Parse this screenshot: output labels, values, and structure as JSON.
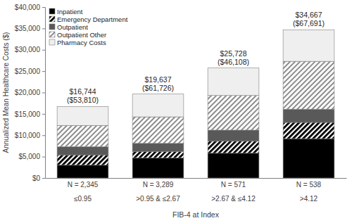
{
  "chart_data": {
    "type": "bar",
    "stacked": true,
    "x_label": "FIB-4 at Index",
    "y_label": "Annualized Mean Healthcare Costs ($)",
    "categories": [
      "≤0.95",
      ">0.95 & ≤2.67",
      ">2.67 & ≤4.12",
      ">4.12"
    ],
    "n_labels": [
      "N = 2,345",
      "N = 3,289",
      "N = 571",
      "N = 538"
    ],
    "series": [
      {
        "name": "Inpatient",
        "color": "#000000",
        "values": [
          3000,
          4700,
          5800,
          9200
        ]
      },
      {
        "name": "Emergency Department",
        "color": "#000000",
        "values": [
          2400,
          1500,
          2800,
          3800
        ]
      },
      {
        "name": "Outpatient",
        "color": "#595959",
        "values": [
          1900,
          1900,
          2600,
          3100
        ]
      },
      {
        "name": "Outpatient Other",
        "color": "#8c8c8c",
        "values": [
          5000,
          6200,
          8100,
          11200
        ]
      },
      {
        "name": "Pharmacy Costs",
        "color": "#efefef",
        "values": [
          4444,
          5337,
          6428,
          7367
        ]
      }
    ],
    "totals": [
      16744,
      19637,
      25728,
      34667
    ],
    "total_labels": [
      "$16,744",
      "$19,637",
      "$25,728",
      "$34,667"
    ],
    "sd_labels": [
      "($53,810)",
      "($61,726)",
      "($46,108)",
      "($67,691)"
    ],
    "ylim": [
      0,
      40000
    ],
    "yticks": [
      {
        "value": 0,
        "label": "$0"
      },
      {
        "value": 5000,
        "label": "$5,000"
      },
      {
        "value": 10000,
        "label": "$10,000"
      },
      {
        "value": 15000,
        "label": "$15,000"
      },
      {
        "value": 20000,
        "label": "$20,000"
      },
      {
        "value": 25000,
        "label": "$25,000"
      },
      {
        "value": 30000,
        "label": "$30,000"
      },
      {
        "value": 35000,
        "label": "$35,000"
      },
      {
        "value": 40000,
        "label": "$40,000"
      }
    ],
    "grid": false,
    "legend": "top-left"
  }
}
